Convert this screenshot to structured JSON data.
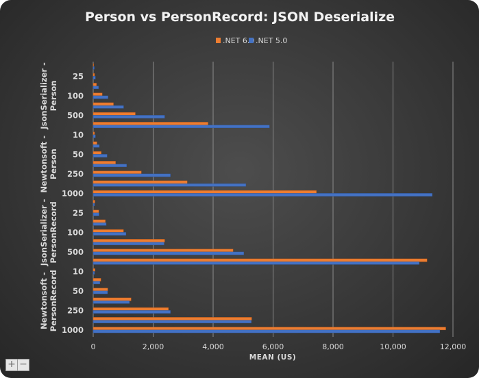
{
  "chart_data": {
    "type": "bar",
    "orientation": "horizontal",
    "title": "Person vs PersonRecord: JSON Deserialize",
    "xlabel": "MEAN (US)",
    "ylabel": "",
    "xlim": [
      0,
      12000
    ],
    "x_ticks": [
      "0",
      "2,000",
      "4,000",
      "6,000",
      "8,000",
      "10,000",
      "12,000"
    ],
    "grid": true,
    "legend_position": "top",
    "groups": [
      {
        "name": "JsonSerializer - Person",
        "label_lines": [
          "JsonSerializer -",
          "Person"
        ]
      },
      {
        "name": "Newtonsoft - Person",
        "label_lines": [
          "Newtonsoft -",
          "Person"
        ]
      },
      {
        "name": "JsonSerializer - PersonRecord",
        "label_lines": [
          "JsonSerializer -",
          "PersonRecord"
        ]
      },
      {
        "name": "Newtonsoft - PersonRecord",
        "label_lines": [
          "Newtonsoft -",
          "PersonRecord"
        ]
      }
    ],
    "categories": [
      "10",
      "25",
      "50",
      "100",
      "250",
      "500",
      "1000"
    ],
    "series": [
      {
        "name": ".NET 6.0",
        "color": "#ED7D31",
        "values": [
          [
            15,
            45,
            110,
            300,
            675,
            1405,
            3830
          ],
          [
            45,
            125,
            270,
            745,
            1605,
            3135,
            7445
          ],
          [
            55,
            185,
            405,
            1010,
            2385,
            4665,
            11134
          ],
          [
            60,
            255,
            485,
            1265,
            2510,
            5285,
            11760
          ]
        ]
      },
      {
        "name": ".NET 5.0",
        "color": "#4472C4",
        "values": [
          [
            35,
            75,
            180,
            495,
            1015,
            2385,
            5880
          ],
          [
            75,
            205,
            465,
            1115,
            2575,
            5095,
            11310
          ],
          [
            45,
            195,
            435,
            1095,
            2365,
            5025,
            10875
          ],
          [
            45,
            225,
            480,
            1210,
            2575,
            5275,
            11563
          ]
        ]
      }
    ]
  },
  "controls": {
    "zoom_in": "+",
    "zoom_out": "−"
  }
}
